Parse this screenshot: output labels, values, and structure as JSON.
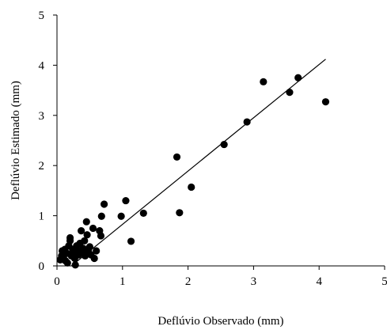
{
  "chart_data": {
    "type": "scatter",
    "xlabel": "Deflúvio Observado (mm)",
    "ylabel": "Deflúvio Estimado (mm)",
    "xlim": [
      0,
      5
    ],
    "ylim": [
      0,
      5
    ],
    "xticks": [
      "0",
      "1",
      "2",
      "3",
      "4",
      "5"
    ],
    "yticks": [
      "0",
      "1",
      "2",
      "3",
      "4",
      "5"
    ],
    "grid": false,
    "series": [
      {
        "points": [
          {
            "x": 0.05,
            "y": 0.12
          },
          {
            "x": 0.07,
            "y": 0.2
          },
          {
            "x": 0.08,
            "y": 0.3
          },
          {
            "x": 0.1,
            "y": 0.15
          },
          {
            "x": 0.12,
            "y": 0.33
          },
          {
            "x": 0.13,
            "y": 0.1
          },
          {
            "x": 0.15,
            "y": 0.25
          },
          {
            "x": 0.16,
            "y": 0.06
          },
          {
            "x": 0.18,
            "y": 0.4
          },
          {
            "x": 0.2,
            "y": 0.5
          },
          {
            "x": 0.2,
            "y": 0.56
          },
          {
            "x": 0.22,
            "y": 0.2
          },
          {
            "x": 0.24,
            "y": 0.33
          },
          {
            "x": 0.25,
            "y": 0.28
          },
          {
            "x": 0.27,
            "y": 0.15
          },
          {
            "x": 0.28,
            "y": 0.02
          },
          {
            "x": 0.3,
            "y": 0.4
          },
          {
            "x": 0.32,
            "y": 0.3
          },
          {
            "x": 0.33,
            "y": 0.22
          },
          {
            "x": 0.35,
            "y": 0.45
          },
          {
            "x": 0.37,
            "y": 0.7
          },
          {
            "x": 0.38,
            "y": 0.27
          },
          {
            "x": 0.4,
            "y": 0.35
          },
          {
            "x": 0.42,
            "y": 0.5
          },
          {
            "x": 0.43,
            "y": 0.2
          },
          {
            "x": 0.45,
            "y": 0.88
          },
          {
            "x": 0.46,
            "y": 0.62
          },
          {
            "x": 0.48,
            "y": 0.3
          },
          {
            "x": 0.5,
            "y": 0.38
          },
          {
            "x": 0.52,
            "y": 0.22
          },
          {
            "x": 0.55,
            "y": 0.75
          },
          {
            "x": 0.57,
            "y": 0.15
          },
          {
            "x": 0.6,
            "y": 0.3
          },
          {
            "x": 0.65,
            "y": 0.7
          },
          {
            "x": 0.67,
            "y": 0.6
          },
          {
            "x": 0.68,
            "y": 0.99
          },
          {
            "x": 0.72,
            "y": 1.23
          },
          {
            "x": 0.98,
            "y": 0.99
          },
          {
            "x": 1.05,
            "y": 1.3
          },
          {
            "x": 1.13,
            "y": 0.49
          },
          {
            "x": 1.32,
            "y": 1.05
          },
          {
            "x": 1.83,
            "y": 2.17
          },
          {
            "x": 1.87,
            "y": 1.06
          },
          {
            "x": 2.05,
            "y": 1.57
          },
          {
            "x": 2.55,
            "y": 2.42
          },
          {
            "x": 2.9,
            "y": 2.87
          },
          {
            "x": 3.15,
            "y": 3.67
          },
          {
            "x": 3.55,
            "y": 3.46
          },
          {
            "x": 3.68,
            "y": 3.75
          },
          {
            "x": 4.1,
            "y": 3.27
          }
        ]
      }
    ],
    "fit_line": {
      "x": [
        0.22,
        4.1
      ],
      "y": [
        0.0,
        4.12
      ]
    }
  }
}
